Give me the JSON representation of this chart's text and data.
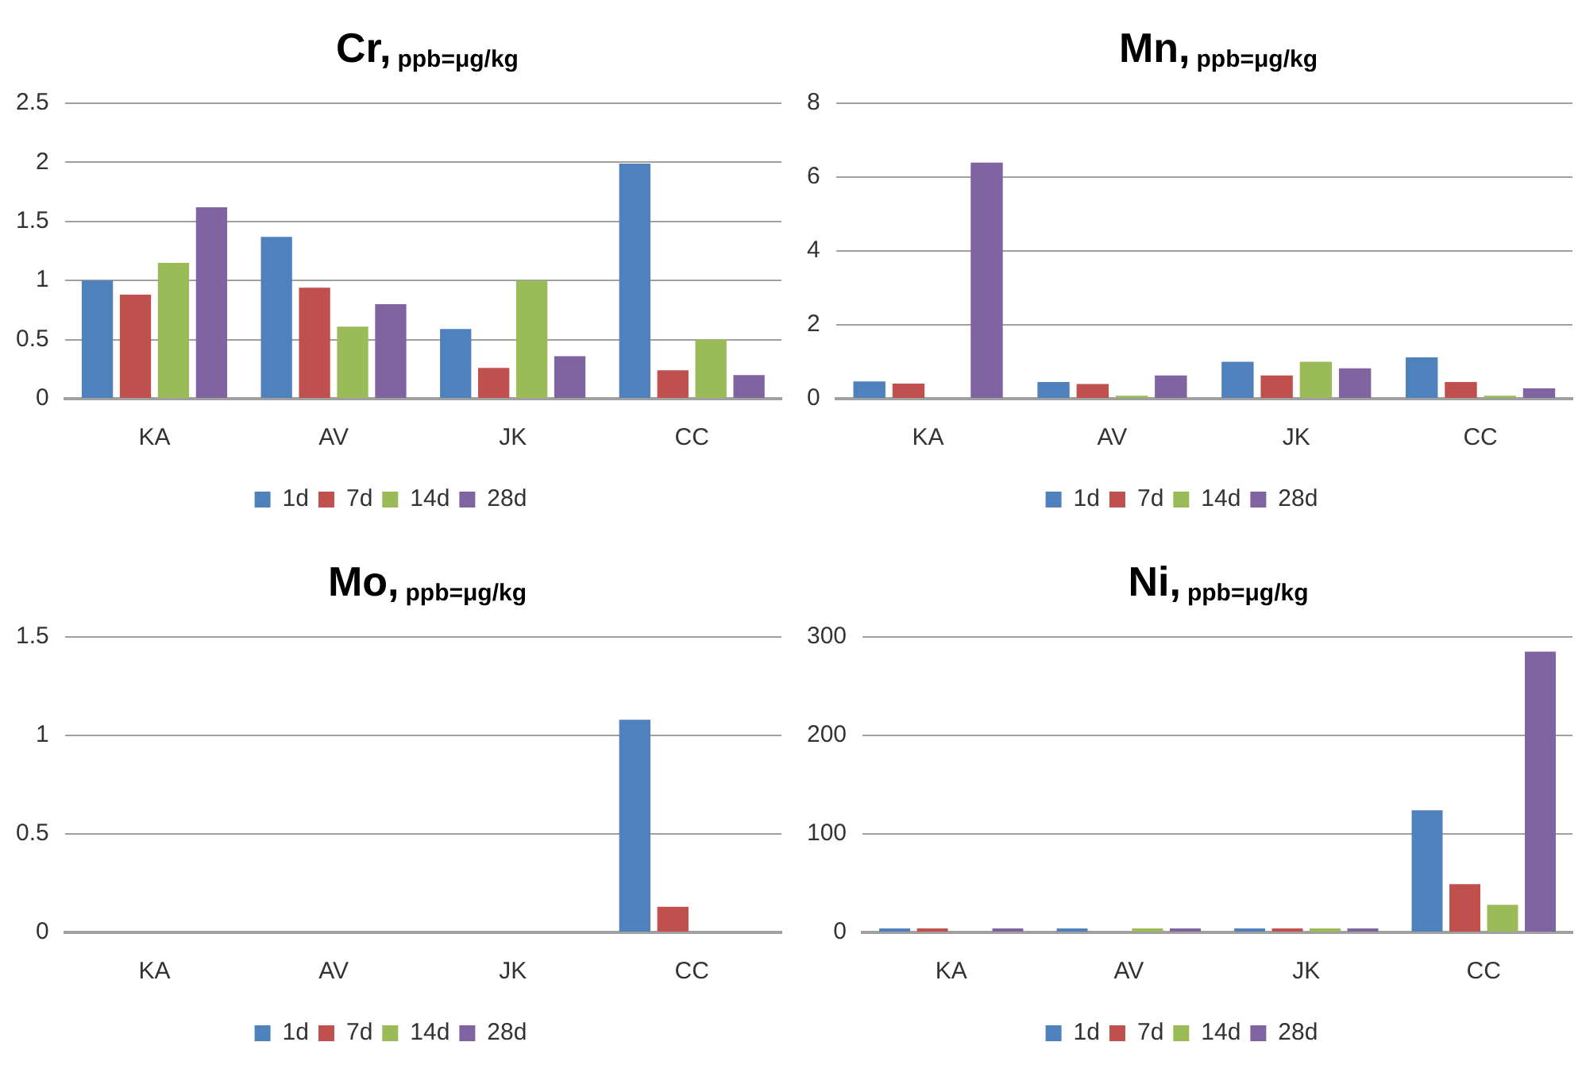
{
  "chart_data": [
    {
      "type": "bar",
      "title": "Cr,",
      "subtitle": "ppb=μg/kg",
      "categories": [
        "KA",
        "AV",
        "JK",
        "CC"
      ],
      "series": [
        {
          "name": "1d",
          "color": "#4f81bd",
          "values": [
            1.0,
            1.37,
            0.59,
            1.99
          ]
        },
        {
          "name": "7d",
          "color": "#c0504d",
          "values": [
            0.88,
            0.94,
            0.26,
            0.24
          ]
        },
        {
          "name": "14d",
          "color": "#9bbb59",
          "values": [
            1.15,
            0.61,
            1.0,
            0.5
          ]
        },
        {
          "name": "28d",
          "color": "#8064a2",
          "values": [
            1.62,
            0.8,
            0.36,
            0.2
          ]
        }
      ],
      "ylim": [
        0,
        2.5
      ],
      "yticks": [
        0,
        0.5,
        1,
        1.5,
        2,
        2.5
      ],
      "grid": "y",
      "legend": "bottom"
    },
    {
      "type": "bar",
      "title": "Mn,",
      "subtitle": "ppb=μg/kg",
      "categories": [
        "KA",
        "AV",
        "JK",
        "CC"
      ],
      "series": [
        {
          "name": "1d",
          "color": "#4f81bd",
          "values": [
            0.47,
            0.45,
            1.0,
            1.12
          ]
        },
        {
          "name": "7d",
          "color": "#c0504d",
          "values": [
            0.41,
            0.4,
            0.63,
            0.45
          ]
        },
        {
          "name": "14d",
          "color": "#9bbb59",
          "values": [
            0,
            0.08,
            1.0,
            0.08
          ]
        },
        {
          "name": "28d",
          "color": "#8064a2",
          "values": [
            6.39,
            0.63,
            0.82,
            0.28
          ]
        }
      ],
      "ylim": [
        0,
        8
      ],
      "yticks": [
        0,
        2,
        4,
        6,
        8
      ],
      "grid": "y",
      "legend": "bottom"
    },
    {
      "type": "bar",
      "title": "Mo,",
      "subtitle": "ppb=μg/kg",
      "categories": [
        "KA",
        "AV",
        "JK",
        "CC"
      ],
      "series": [
        {
          "name": "1d",
          "color": "#4f81bd",
          "values": [
            0,
            0,
            0,
            1.08
          ]
        },
        {
          "name": "7d",
          "color": "#c0504d",
          "values": [
            0,
            0,
            0,
            0.13
          ]
        },
        {
          "name": "14d",
          "color": "#9bbb59",
          "values": [
            0,
            0,
            0,
            0
          ]
        },
        {
          "name": "28d",
          "color": "#8064a2",
          "values": [
            0,
            0,
            0,
            0
          ]
        }
      ],
      "ylim": [
        0,
        1.5
      ],
      "yticks": [
        0,
        0.5,
        1,
        1.5
      ],
      "grid": "y",
      "legend": "bottom"
    },
    {
      "type": "bar",
      "title": "Ni,",
      "subtitle": "ppb=μg/kg",
      "categories": [
        "KA",
        "AV",
        "JK",
        "CC"
      ],
      "series": [
        {
          "name": "1d",
          "color": "#4f81bd",
          "values": [
            4,
            4,
            4,
            124
          ]
        },
        {
          "name": "7d",
          "color": "#c0504d",
          "values": [
            4,
            0,
            4,
            49
          ]
        },
        {
          "name": "14d",
          "color": "#9bbb59",
          "values": [
            0,
            4,
            4,
            28
          ]
        },
        {
          "name": "28d",
          "color": "#8064a2",
          "values": [
            4,
            4,
            4,
            285
          ]
        }
      ],
      "ylim": [
        0,
        300
      ],
      "yticks": [
        0,
        100,
        200,
        300
      ],
      "grid": "y",
      "legend": "bottom"
    }
  ]
}
